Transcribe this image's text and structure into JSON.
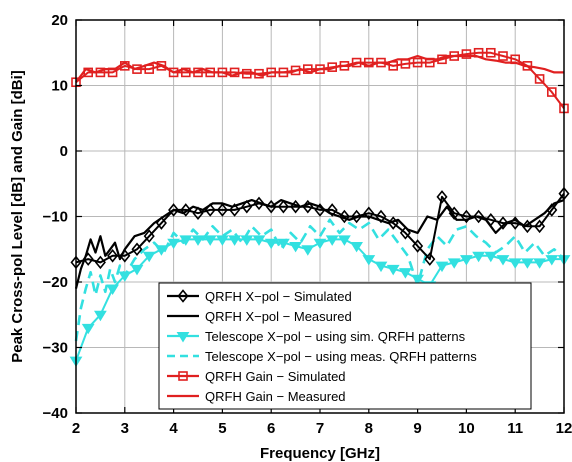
{
  "chart_data": {
    "type": "line",
    "xlabel": "Frequency [GHz]",
    "ylabel": "Peak Cross-pol Level [dB] and Gain [dBi]",
    "xlim": [
      2,
      12
    ],
    "ylim": [
      -40,
      20
    ],
    "xticks": [
      2,
      3,
      4,
      5,
      6,
      7,
      8,
      9,
      10,
      11,
      12
    ],
    "yticks": [
      -40,
      -30,
      -20,
      -10,
      0,
      10,
      20
    ],
    "xtick_labels": [
      "2",
      "3",
      "4",
      "5",
      "6",
      "7",
      "8",
      "9",
      "10",
      "11",
      "12"
    ],
    "ytick_labels": [
      "−40",
      "−30",
      "−20",
      "−10",
      "0",
      "10",
      "20"
    ],
    "grid": true,
    "legend_position": "bottom-center",
    "series": [
      {
        "name": "QRFH X−pol − Simulated",
        "color": "#000000",
        "style": "solid",
        "marker": "diamond",
        "x": [
          2.0,
          2.25,
          2.5,
          2.75,
          3.0,
          3.25,
          3.5,
          3.75,
          4.0,
          4.25,
          4.5,
          4.75,
          5.0,
          5.25,
          5.5,
          5.75,
          6.0,
          6.25,
          6.5,
          6.75,
          7.0,
          7.25,
          7.5,
          7.75,
          8.0,
          8.25,
          8.5,
          8.75,
          9.0,
          9.25,
          9.5,
          9.75,
          10.0,
          10.25,
          10.5,
          10.75,
          11.0,
          11.25,
          11.5,
          11.75,
          12.0
        ],
        "y": [
          -17.0,
          -16.5,
          -17.0,
          -16.0,
          -16.0,
          -15.0,
          -13.0,
          -11.0,
          -9.0,
          -9.0,
          -9.5,
          -9.0,
          -9.0,
          -9.0,
          -8.5,
          -8.0,
          -8.5,
          -8.5,
          -8.5,
          -8.5,
          -9.0,
          -9.0,
          -10.0,
          -10.0,
          -9.5,
          -10.0,
          -11.0,
          -12.5,
          -14.5,
          -16.5,
          -7.0,
          -9.5,
          -10.0,
          -10.0,
          -10.5,
          -11.0,
          -11.0,
          -11.5,
          -11.5,
          -9.0,
          -6.5
        ]
      },
      {
        "name": "QRFH X−pol − Measured",
        "color": "#000000",
        "style": "solid",
        "marker": "none",
        "x": [
          2.0,
          2.1,
          2.2,
          2.3,
          2.4,
          2.5,
          2.6,
          2.7,
          2.8,
          2.9,
          3.0,
          3.2,
          3.4,
          3.6,
          3.8,
          4.0,
          4.2,
          4.4,
          4.6,
          4.8,
          5.0,
          5.2,
          5.4,
          5.6,
          5.8,
          6.0,
          6.2,
          6.4,
          6.6,
          6.8,
          7.0,
          7.2,
          7.4,
          7.6,
          7.8,
          8.0,
          8.2,
          8.4,
          8.6,
          8.8,
          9.0,
          9.2,
          9.4,
          9.6,
          9.8,
          10.0,
          10.2,
          10.4,
          10.6,
          10.8,
          11.0,
          11.2,
          11.4,
          11.6,
          11.8,
          12.0
        ],
        "y": [
          -21.0,
          -18.0,
          -16.0,
          -13.5,
          -15.5,
          -13.0,
          -16.0,
          -15.0,
          -14.0,
          -16.5,
          -15.0,
          -13.0,
          -12.5,
          -11.0,
          -10.0,
          -9.0,
          -9.5,
          -8.5,
          -9.0,
          -8.0,
          -8.0,
          -8.5,
          -8.0,
          -7.5,
          -8.0,
          -8.5,
          -7.5,
          -8.0,
          -8.5,
          -8.0,
          -8.5,
          -9.5,
          -10.0,
          -10.5,
          -10.0,
          -10.0,
          -10.5,
          -11.0,
          -10.5,
          -12.0,
          -12.5,
          -10.0,
          -10.5,
          -8.5,
          -10.5,
          -10.5,
          -10.0,
          -10.5,
          -12.5,
          -11.0,
          -10.5,
          -11.5,
          -10.5,
          -9.5,
          -8.0,
          -7.5
        ]
      },
      {
        "name": "Telescope X−pol − using sim. QRFH patterns",
        "color": "#33E0E0",
        "style": "solid",
        "marker": "triangle-down",
        "x": [
          2.0,
          2.25,
          2.5,
          2.75,
          3.0,
          3.25,
          3.5,
          3.75,
          4.0,
          4.25,
          4.5,
          4.75,
          5.0,
          5.25,
          5.5,
          5.75,
          6.0,
          6.25,
          6.5,
          6.75,
          7.0,
          7.25,
          7.5,
          7.75,
          8.0,
          8.25,
          8.5,
          8.75,
          9.0,
          9.25,
          9.5,
          9.75,
          10.0,
          10.25,
          10.5,
          10.75,
          11.0,
          11.25,
          11.5,
          11.75,
          12.0
        ],
        "y": [
          -32.0,
          -27.0,
          -25.0,
          -21.0,
          -19.0,
          -18.0,
          -16.0,
          -15.0,
          -14.0,
          -13.5,
          -13.5,
          -13.5,
          -13.5,
          -13.5,
          -13.5,
          -13.5,
          -14.0,
          -14.0,
          -14.5,
          -15.0,
          -14.0,
          -13.5,
          -13.5,
          -14.5,
          -16.5,
          -17.5,
          -18.0,
          -18.5,
          -19.5,
          -20.5,
          -17.5,
          -17.0,
          -16.5,
          -16.0,
          -16.0,
          -16.5,
          -17.0,
          -17.0,
          -17.0,
          -16.5,
          -16.5
        ]
      },
      {
        "name": "Telescope X−pol − using meas. QRFH patterns",
        "color": "#33E0E0",
        "style": "dashed",
        "marker": "none",
        "x": [
          2.0,
          2.1,
          2.2,
          2.3,
          2.4,
          2.5,
          2.6,
          2.7,
          2.8,
          2.9,
          3.0,
          3.2,
          3.4,
          3.6,
          3.8,
          4.0,
          4.2,
          4.4,
          4.6,
          4.8,
          5.0,
          5.2,
          5.4,
          5.6,
          5.8,
          6.0,
          6.2,
          6.4,
          6.6,
          6.8,
          7.0,
          7.2,
          7.4,
          7.6,
          7.8,
          8.0,
          8.2,
          8.4,
          8.6,
          8.8,
          9.0,
          9.2,
          9.4,
          9.6,
          9.8,
          10.0,
          10.2,
          10.4,
          10.6,
          10.8,
          11.0,
          11.2,
          11.4,
          11.6,
          11.8,
          12.0
        ],
        "y": [
          -29.0,
          -24.0,
          -21.0,
          -18.5,
          -22.0,
          -19.0,
          -21.5,
          -18.0,
          -20.0,
          -17.5,
          -19.0,
          -16.5,
          -15.0,
          -14.0,
          -15.5,
          -12.5,
          -14.0,
          -12.0,
          -13.5,
          -11.5,
          -13.0,
          -12.0,
          -14.0,
          -11.5,
          -13.0,
          -12.0,
          -15.0,
          -12.5,
          -14.0,
          -11.5,
          -13.0,
          -10.5,
          -12.5,
          -11.0,
          -12.0,
          -11.0,
          -13.5,
          -12.0,
          -14.0,
          -16.0,
          -20.5,
          -15.0,
          -13.0,
          -14.5,
          -12.0,
          -11.5,
          -13.0,
          -14.0,
          -15.5,
          -14.5,
          -13.0,
          -15.5,
          -14.0,
          -16.0,
          -15.0,
          -16.5
        ]
      },
      {
        "name": "QRFH Gain − Simulated",
        "color": "#E02020",
        "style": "solid",
        "marker": "square",
        "x": [
          2.0,
          2.25,
          2.5,
          2.75,
          3.0,
          3.25,
          3.5,
          3.75,
          4.0,
          4.25,
          4.5,
          4.75,
          5.0,
          5.25,
          5.5,
          5.75,
          6.0,
          6.25,
          6.5,
          6.75,
          7.0,
          7.25,
          7.5,
          7.75,
          8.0,
          8.25,
          8.5,
          8.75,
          9.0,
          9.25,
          9.5,
          9.75,
          10.0,
          10.25,
          10.5,
          10.75,
          11.0,
          11.25,
          11.5,
          11.75,
          12.0
        ],
        "y": [
          10.5,
          12.0,
          12.0,
          12.0,
          13.0,
          12.5,
          12.5,
          13.0,
          12.0,
          12.0,
          12.0,
          12.0,
          12.0,
          12.0,
          11.8,
          11.8,
          12.0,
          12.0,
          12.3,
          12.5,
          12.5,
          12.8,
          13.0,
          13.5,
          13.5,
          13.5,
          13.0,
          13.3,
          13.5,
          13.5,
          14.0,
          14.5,
          14.8,
          15.0,
          15.0,
          14.5,
          14.0,
          13.0,
          11.0,
          9.0,
          6.5
        ]
      },
      {
        "name": "QRFH Gain − Measured",
        "color": "#E02020",
        "style": "solid",
        "marker": "none",
        "x": [
          2.0,
          2.2,
          2.4,
          2.6,
          2.8,
          3.0,
          3.2,
          3.4,
          3.6,
          3.8,
          4.0,
          4.2,
          4.4,
          4.6,
          4.8,
          5.0,
          5.2,
          5.4,
          5.6,
          5.8,
          6.0,
          6.2,
          6.4,
          6.6,
          6.8,
          7.0,
          7.2,
          7.4,
          7.6,
          7.8,
          8.0,
          8.2,
          8.4,
          8.6,
          8.8,
          9.0,
          9.2,
          9.4,
          9.6,
          9.8,
          10.0,
          10.2,
          10.4,
          10.6,
          10.8,
          11.0,
          11.2,
          11.4,
          11.6,
          11.8,
          12.0
        ],
        "y": [
          10.5,
          12.5,
          12.0,
          12.5,
          12.5,
          13.5,
          12.5,
          13.0,
          13.5,
          13.0,
          12.0,
          12.5,
          12.0,
          12.5,
          12.0,
          12.0,
          11.5,
          12.0,
          12.0,
          11.5,
          12.0,
          12.0,
          12.0,
          12.5,
          12.0,
          12.5,
          12.5,
          13.0,
          13.0,
          13.5,
          13.0,
          13.5,
          13.5,
          14.0,
          14.0,
          14.5,
          14.0,
          14.0,
          14.5,
          14.5,
          14.5,
          14.5,
          14.0,
          13.8,
          13.5,
          13.5,
          13.0,
          12.8,
          12.5,
          12.0,
          12.0
        ]
      }
    ]
  }
}
